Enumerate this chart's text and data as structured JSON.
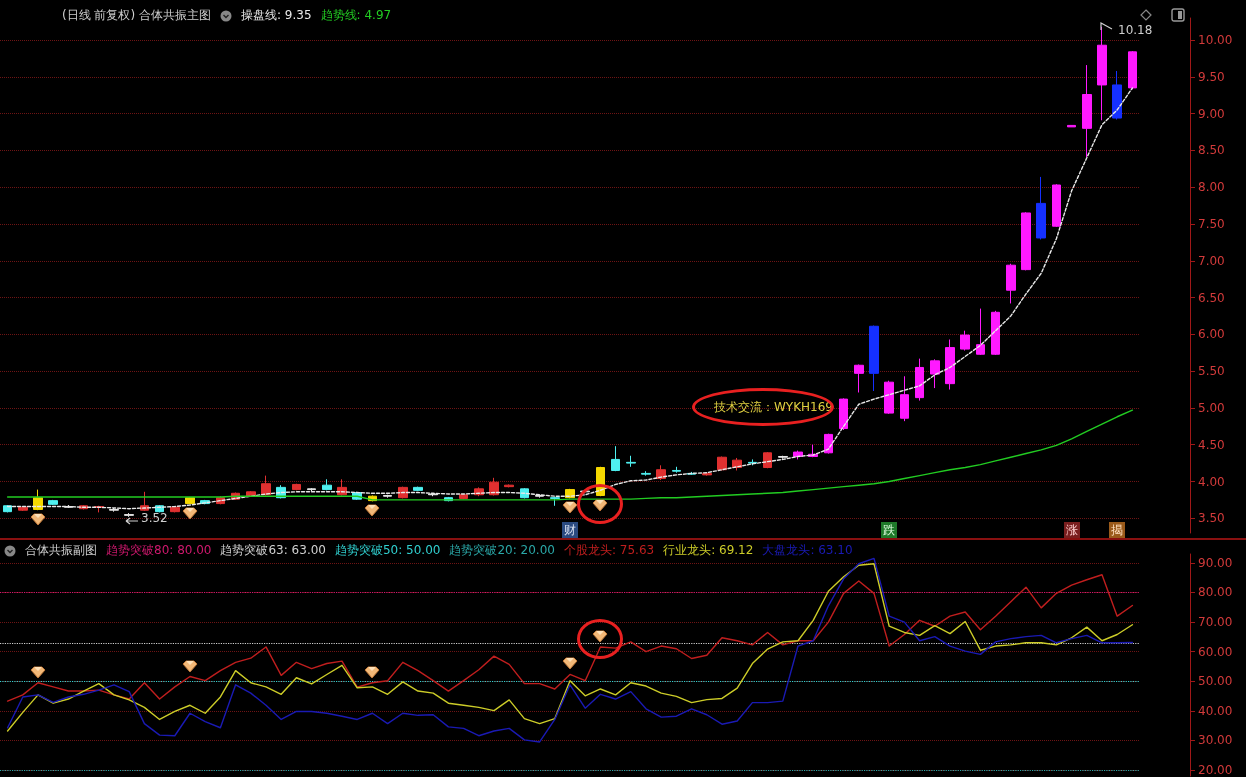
{
  "chart_data": [
    {
      "type": "candlestick",
      "title": "(日线 前复权) 合体共振主图",
      "categories": [
        null,
        null,
        null,
        null,
        null,
        null,
        null,
        null,
        null,
        null,
        null,
        null,
        null,
        null,
        null,
        null,
        null,
        null,
        null,
        null,
        null,
        null,
        null,
        null,
        null,
        null,
        null,
        null,
        null,
        null,
        null,
        null,
        null,
        null,
        null,
        null,
        null,
        null,
        null,
        null,
        null,
        null,
        null,
        null,
        null,
        null,
        null,
        null,
        null,
        null,
        null,
        null,
        null,
        null,
        null,
        null,
        null,
        null,
        null,
        null,
        null,
        null,
        null,
        null,
        null,
        null,
        null,
        null,
        null,
        null,
        null,
        null,
        null,
        null,
        null
      ],
      "ohlc": [
        [
          3.67,
          3.68,
          3.58,
          3.59
        ],
        [
          3.61,
          3.66,
          3.6,
          3.65
        ],
        [
          3.62,
          3.89,
          3.61,
          3.78
        ],
        [
          3.74,
          3.75,
          3.68,
          3.69
        ],
        [
          3.66,
          3.68,
          3.64,
          3.65
        ],
        [
          3.63,
          3.68,
          3.62,
          3.67
        ],
        [
          3.66,
          3.67,
          3.58,
          3.65
        ],
        [
          3.62,
          3.64,
          3.59,
          3.61
        ],
        [
          3.55,
          3.57,
          3.52,
          3.54
        ],
        [
          3.61,
          3.86,
          3.6,
          3.67
        ],
        [
          3.67,
          3.68,
          3.58,
          3.59
        ],
        [
          3.59,
          3.66,
          3.58,
          3.65
        ],
        [
          3.7,
          3.79,
          3.69,
          3.78
        ],
        [
          3.74,
          3.75,
          3.69,
          3.7
        ],
        [
          3.7,
          3.8,
          3.69,
          3.78
        ],
        [
          3.76,
          3.85,
          3.75,
          3.84
        ],
        [
          3.8,
          3.87,
          3.79,
          3.86
        ],
        [
          3.82,
          4.08,
          3.81,
          3.97
        ],
        [
          3.92,
          3.95,
          3.77,
          3.78
        ],
        [
          3.89,
          3.97,
          3.88,
          3.96
        ],
        [
          3.89,
          3.91,
          3.87,
          3.9
        ],
        [
          3.95,
          4.03,
          3.88,
          3.89
        ],
        [
          3.82,
          4.03,
          3.81,
          3.92
        ],
        [
          3.85,
          3.86,
          3.75,
          3.76
        ],
        [
          3.74,
          3.81,
          3.73,
          3.8
        ],
        [
          3.8,
          3.82,
          3.78,
          3.81
        ],
        [
          3.78,
          3.93,
          3.77,
          3.92
        ],
        [
          3.92,
          3.93,
          3.87,
          3.88
        ],
        [
          3.82,
          3.84,
          3.8,
          3.83
        ],
        [
          3.78,
          3.79,
          3.73,
          3.74
        ],
        [
          3.77,
          3.83,
          3.76,
          3.82
        ],
        [
          3.82,
          3.92,
          3.8,
          3.9
        ],
        [
          3.82,
          4.05,
          3.81,
          3.99
        ],
        [
          3.93,
          3.96,
          3.92,
          3.95
        ],
        [
          3.9,
          3.91,
          3.77,
          3.78
        ],
        [
          3.8,
          3.82,
          3.78,
          3.81
        ],
        [
          3.78,
          3.79,
          3.67,
          3.77
        ],
        [
          3.78,
          3.9,
          3.77,
          3.89
        ],
        [
          3.86,
          3.88,
          3.84,
          3.87
        ],
        [
          3.81,
          4.2,
          3.8,
          4.19
        ],
        [
          4.3,
          4.48,
          4.14,
          4.15
        ],
        [
          4.26,
          4.35,
          4.2,
          4.25
        ],
        [
          4.11,
          4.14,
          4.08,
          4.1
        ],
        [
          4.04,
          4.22,
          4.02,
          4.16
        ],
        [
          4.15,
          4.2,
          4.12,
          4.14
        ],
        [
          4.11,
          4.13,
          4.09,
          4.1
        ],
        [
          4.09,
          4.12,
          4.08,
          4.11
        ],
        [
          4.16,
          4.34,
          4.15,
          4.33
        ],
        [
          4.19,
          4.32,
          4.15,
          4.29
        ],
        [
          4.26,
          4.3,
          4.22,
          4.25
        ],
        [
          4.19,
          4.4,
          4.18,
          4.39
        ],
        [
          4.33,
          4.35,
          4.31,
          4.34
        ],
        [
          4.34,
          4.42,
          4.3,
          4.4
        ],
        [
          4.34,
          4.5,
          4.33,
          4.37
        ],
        [
          4.39,
          4.65,
          4.38,
          4.64
        ],
        [
          4.72,
          5.13,
          4.7,
          5.12
        ],
        [
          5.47,
          5.59,
          5.21,
          5.58
        ],
        [
          6.11,
          6.12,
          5.23,
          5.47
        ],
        [
          4.93,
          5.37,
          4.92,
          5.35
        ],
        [
          4.86,
          5.43,
          4.82,
          5.18
        ],
        [
          5.14,
          5.67,
          5.1,
          5.55
        ],
        [
          5.46,
          5.66,
          5.27,
          5.64
        ],
        [
          5.33,
          5.93,
          5.25,
          5.82
        ],
        [
          5.8,
          6.05,
          5.78,
          5.99
        ],
        [
          5.73,
          6.35,
          5.72,
          5.86
        ],
        [
          5.73,
          6.32,
          5.72,
          6.3
        ],
        [
          6.6,
          6.96,
          6.42,
          6.94
        ],
        [
          6.88,
          7.66,
          6.87,
          7.65
        ],
        [
          7.78,
          8.14,
          7.29,
          7.31
        ],
        [
          7.47,
          8.04,
          7.46,
          8.03
        ],
        [
          8.82,
          8.84,
          8.82,
          8.84
        ],
        [
          8.8,
          9.66,
          8.41,
          9.26
        ],
        [
          9.39,
          10.18,
          8.91,
          9.93
        ],
        [
          9.39,
          9.58,
          8.92,
          8.94
        ],
        [
          9.35,
          9.85,
          9.33,
          9.84
        ]
      ],
      "colors": [
        "#4ff0f0",
        "#e03030",
        "#f5d800",
        "#4ff0f0",
        "#e8e8e8",
        "#e03030",
        "#e03030",
        "#e8e8e8",
        "#e8e8e8",
        "#e03030",
        "#4ff0f0",
        "#e03030",
        "#f5d800",
        "#4ff0f0",
        "#e03030",
        "#e03030",
        "#e03030",
        "#e03030",
        "#4ff0f0",
        "#e03030",
        "#e8e8e8",
        "#4ff0f0",
        "#e03030",
        "#4ff0f0",
        "#f5d800",
        "#e8e8e8",
        "#e03030",
        "#4ff0f0",
        "#e8e8e8",
        "#4ff0f0",
        "#e03030",
        "#e03030",
        "#e03030",
        "#e03030",
        "#4ff0f0",
        "#e8e8e8",
        "#4ff0f0",
        "#f5d800",
        "#e8e8e8",
        "#f5d800",
        "#4ff0f0",
        "#4ff0f0",
        "#4ff0f0",
        "#e03030",
        "#4ff0f0",
        "#4ff0f0",
        "#e03030",
        "#e03030",
        "#e03030",
        "#4ff0f0",
        "#e03030",
        "#e8e8e8",
        "#ff19ff",
        "#ff19ff",
        "#ff19ff",
        "#ff19ff",
        "#ff19ff",
        "#1530ff",
        "#ff19ff",
        "#ff19ff",
        "#ff19ff",
        "#ff19ff",
        "#ff19ff",
        "#ff19ff",
        "#ff19ff",
        "#ff19ff",
        "#ff19ff",
        "#ff19ff",
        "#1530ff",
        "#ff19ff",
        "#ff19ff",
        "#ff19ff",
        "#ff19ff",
        "#1530ff",
        "#ff19ff"
      ],
      "series": [
        {
          "name": "操盘线: 9.35",
          "type": "line",
          "color": "#e8e8e8",
          "line_style": "dashed",
          "values": [
            3.66,
            3.66,
            3.66,
            3.66,
            3.66,
            3.65,
            3.65,
            3.64,
            3.63,
            3.64,
            3.65,
            3.66,
            3.68,
            3.71,
            3.74,
            3.77,
            3.8,
            3.83,
            3.85,
            3.86,
            3.86,
            3.86,
            3.86,
            3.85,
            3.84,
            3.84,
            3.85,
            3.85,
            3.84,
            3.83,
            3.83,
            3.84,
            3.85,
            3.85,
            3.84,
            3.82,
            3.8,
            3.8,
            3.82,
            3.88,
            3.96,
            4.01,
            4.02,
            4.06,
            4.09,
            4.11,
            4.12,
            4.16,
            4.2,
            4.24,
            4.27,
            4.3,
            4.34,
            4.36,
            4.44,
            4.75,
            5.05,
            5.12,
            5.18,
            5.24,
            5.3,
            5.45,
            5.55,
            5.7,
            5.85,
            6.05,
            6.25,
            6.55,
            6.83,
            7.3,
            7.95,
            8.4,
            8.85,
            9.05,
            9.35
          ]
        },
        {
          "name": "趋势线: 4.97",
          "type": "line",
          "color": "#22cc22",
          "line_style": "solid",
          "values": [
            3.79,
            3.79,
            3.79,
            3.79,
            3.79,
            3.79,
            3.79,
            3.79,
            3.79,
            3.79,
            3.79,
            3.79,
            3.79,
            3.79,
            3.79,
            3.8,
            3.8,
            3.8,
            3.8,
            3.8,
            3.8,
            3.8,
            3.8,
            3.8,
            3.75,
            3.75,
            3.75,
            3.75,
            3.75,
            3.75,
            3.75,
            3.75,
            3.75,
            3.75,
            3.75,
            3.75,
            3.75,
            3.76,
            3.76,
            3.76,
            3.76,
            3.76,
            3.77,
            3.78,
            3.78,
            3.79,
            3.8,
            3.81,
            3.82,
            3.83,
            3.84,
            3.85,
            3.87,
            3.89,
            3.91,
            3.93,
            3.95,
            3.97,
            4.0,
            4.04,
            4.08,
            4.12,
            4.16,
            4.19,
            4.23,
            4.28,
            4.33,
            4.38,
            4.43,
            4.49,
            4.58,
            4.68,
            4.78,
            4.88,
            4.97
          ]
        }
      ],
      "ylim": [
        3.3,
        10.3
      ],
      "yticks": [
        {
          "value": 3.5,
          "label": "3.50"
        },
        {
          "value": 4,
          "label": "4.00"
        },
        {
          "value": 4.5,
          "label": "4.50"
        },
        {
          "value": 5,
          "label": "5.00"
        },
        {
          "value": 5.5,
          "label": "5.50"
        },
        {
          "value": 6,
          "label": "6.00"
        },
        {
          "value": 6.5,
          "label": "6.50"
        },
        {
          "value": 7,
          "label": "7.00"
        },
        {
          "value": 7.5,
          "label": "7.50"
        },
        {
          "value": 8,
          "label": "8.00"
        },
        {
          "value": 8.5,
          "label": "8.50"
        },
        {
          "value": 9,
          "label": "9.00"
        },
        {
          "value": 9.5,
          "label": "9.50"
        },
        {
          "value": 10,
          "label": "10.00"
        }
      ],
      "grid": "y",
      "legend": "top left",
      "tick_labels": "y",
      "marker": "none",
      "annotations": [
        "10.18",
        "3.52",
        "技术交流：WYKH169",
        "财",
        "跌",
        "涨",
        "揭"
      ]
    },
    {
      "type": "line",
      "title": "合体共振副图",
      "categories": [
        null,
        null,
        null,
        null,
        null,
        null,
        null,
        null,
        null,
        null,
        null,
        null,
        null,
        null,
        null,
        null,
        null,
        null,
        null,
        null,
        null,
        null,
        null,
        null,
        null,
        null,
        null,
        null,
        null,
        null,
        null,
        null,
        null,
        null,
        null,
        null,
        null,
        null,
        null,
        null,
        null,
        null,
        null,
        null,
        null,
        null,
        null,
        null,
        null,
        null,
        null,
        null,
        null,
        null,
        null,
        null,
        null,
        null,
        null,
        null,
        null,
        null,
        null,
        null,
        null,
        null,
        null,
        null,
        null,
        null,
        null,
        null,
        null,
        null,
        null
      ],
      "series": [
        {
          "name": "个股龙头: 75.63",
          "color": "#c01e1e",
          "values": [
            43.3,
            45.4,
            49.5,
            48.1,
            46.7,
            46.7,
            47,
            45.4,
            44,
            49.5,
            44,
            48.1,
            51.6,
            50.2,
            53.6,
            56.4,
            57.8,
            61.6,
            52,
            56.4,
            54.3,
            56,
            56.8,
            48,
            49.5,
            50.2,
            56.4,
            53.6,
            50.2,
            46.7,
            50.2,
            53.9,
            58.5,
            55.7,
            49.2,
            49.2,
            47.4,
            52.3,
            50.2,
            61.6,
            61.2,
            63.3,
            60,
            61.9,
            61,
            57.7,
            58.8,
            64.7,
            63.7,
            62.3,
            66.5,
            62.3,
            63.7,
            63.7,
            70,
            79.7,
            83.9,
            79.7,
            61.9,
            65.8,
            70.6,
            68.6,
            72,
            73.4,
            67.4,
            72,
            76.9,
            81.8,
            74.8,
            79.7,
            82.5,
            84.3,
            86,
            72,
            75.6
          ]
        },
        {
          "name": "行业龙头: 69.12",
          "color": "#cccc28",
          "values": [
            33.2,
            39.5,
            45.4,
            42.6,
            44,
            46.7,
            49.2,
            45.4,
            43.7,
            41.2,
            37.1,
            39.8,
            41.9,
            39.2,
            44.7,
            53.6,
            49.5,
            48.1,
            45.6,
            51.2,
            49.1,
            52.3,
            55.4,
            47.8,
            48.1,
            45.6,
            49.8,
            46.7,
            46,
            42.6,
            41.9,
            41.2,
            40.1,
            43.7,
            37.4,
            35.7,
            37.4,
            50.2,
            45.1,
            47.4,
            45.4,
            49.5,
            48.4,
            46,
            44.9,
            42.8,
            43.8,
            44.2,
            47.7,
            56,
            60.9,
            63.3,
            63.7,
            70.6,
            80.4,
            85.3,
            89.2,
            89.7,
            68.6,
            66.5,
            65.5,
            68.8,
            66.1,
            70.2,
            60.5,
            61.9,
            62.3,
            63,
            63,
            62.3,
            64.7,
            68.3,
            63.7,
            65.8,
            69.1
          ]
        },
        {
          "name": "大盘龙头: 63.10",
          "color": "#1a1ab4",
          "values": [
            34.3,
            44.7,
            45.4,
            42.9,
            44.7,
            45.6,
            47,
            48.8,
            46.5,
            35.7,
            31.8,
            31.6,
            39.2,
            36.4,
            34.3,
            48.8,
            46,
            41.9,
            37.1,
            39.8,
            39.8,
            39.2,
            38.2,
            37.1,
            39.2,
            35.7,
            39.2,
            38.5,
            38.7,
            34.6,
            34.1,
            31.6,
            33.2,
            34.1,
            30.2,
            29.5,
            37.1,
            48.8,
            40.9,
            45.6,
            44,
            46.5,
            40.7,
            37.9,
            38.2,
            40.7,
            38.7,
            35.5,
            36.6,
            42.8,
            42.8,
            43.3,
            61.9,
            63.7,
            75.5,
            84.6,
            89.7,
            91.5,
            72,
            70,
            63.7,
            65.1,
            61.9,
            60.2,
            59.1,
            63.3,
            64.4,
            65.1,
            65.5,
            63,
            64.4,
            65.5,
            63,
            63,
            63.1
          ]
        }
      ],
      "ref_lines": [
        {
          "axis": "y",
          "value": 80,
          "label": "趋势突破80: 80.00",
          "color": "#d0186e",
          "line_style": "dotted"
        },
        {
          "axis": "y",
          "value": 63,
          "label": "趋势突破63: 63.00",
          "color": "#d0d0d0",
          "line_style": "dotted"
        },
        {
          "axis": "y",
          "value": 50,
          "label": "趋势突破50: 50.00",
          "color": "#30d0d0",
          "line_style": "dotted"
        },
        {
          "axis": "y",
          "value": 20,
          "label": "趋势突破20: 20.00",
          "color": "#2aa8a8",
          "line_style": "dotted"
        }
      ],
      "ylim": [
        18,
        93
      ],
      "yticks": [
        {
          "value": 20,
          "label": "20.00"
        },
        {
          "value": 30,
          "label": "30.00"
        },
        {
          "value": 40,
          "label": "40.00"
        },
        {
          "value": 50,
          "label": "50.00"
        },
        {
          "value": 60,
          "label": "60.00"
        },
        {
          "value": 70,
          "label": "70.00"
        },
        {
          "value": 80,
          "label": "80.00"
        },
        {
          "value": 90,
          "label": "90.00"
        }
      ],
      "grid": "y",
      "legend": "top left",
      "tick_labels": "y",
      "marker": "none",
      "line_style": "solid"
    }
  ]
}
